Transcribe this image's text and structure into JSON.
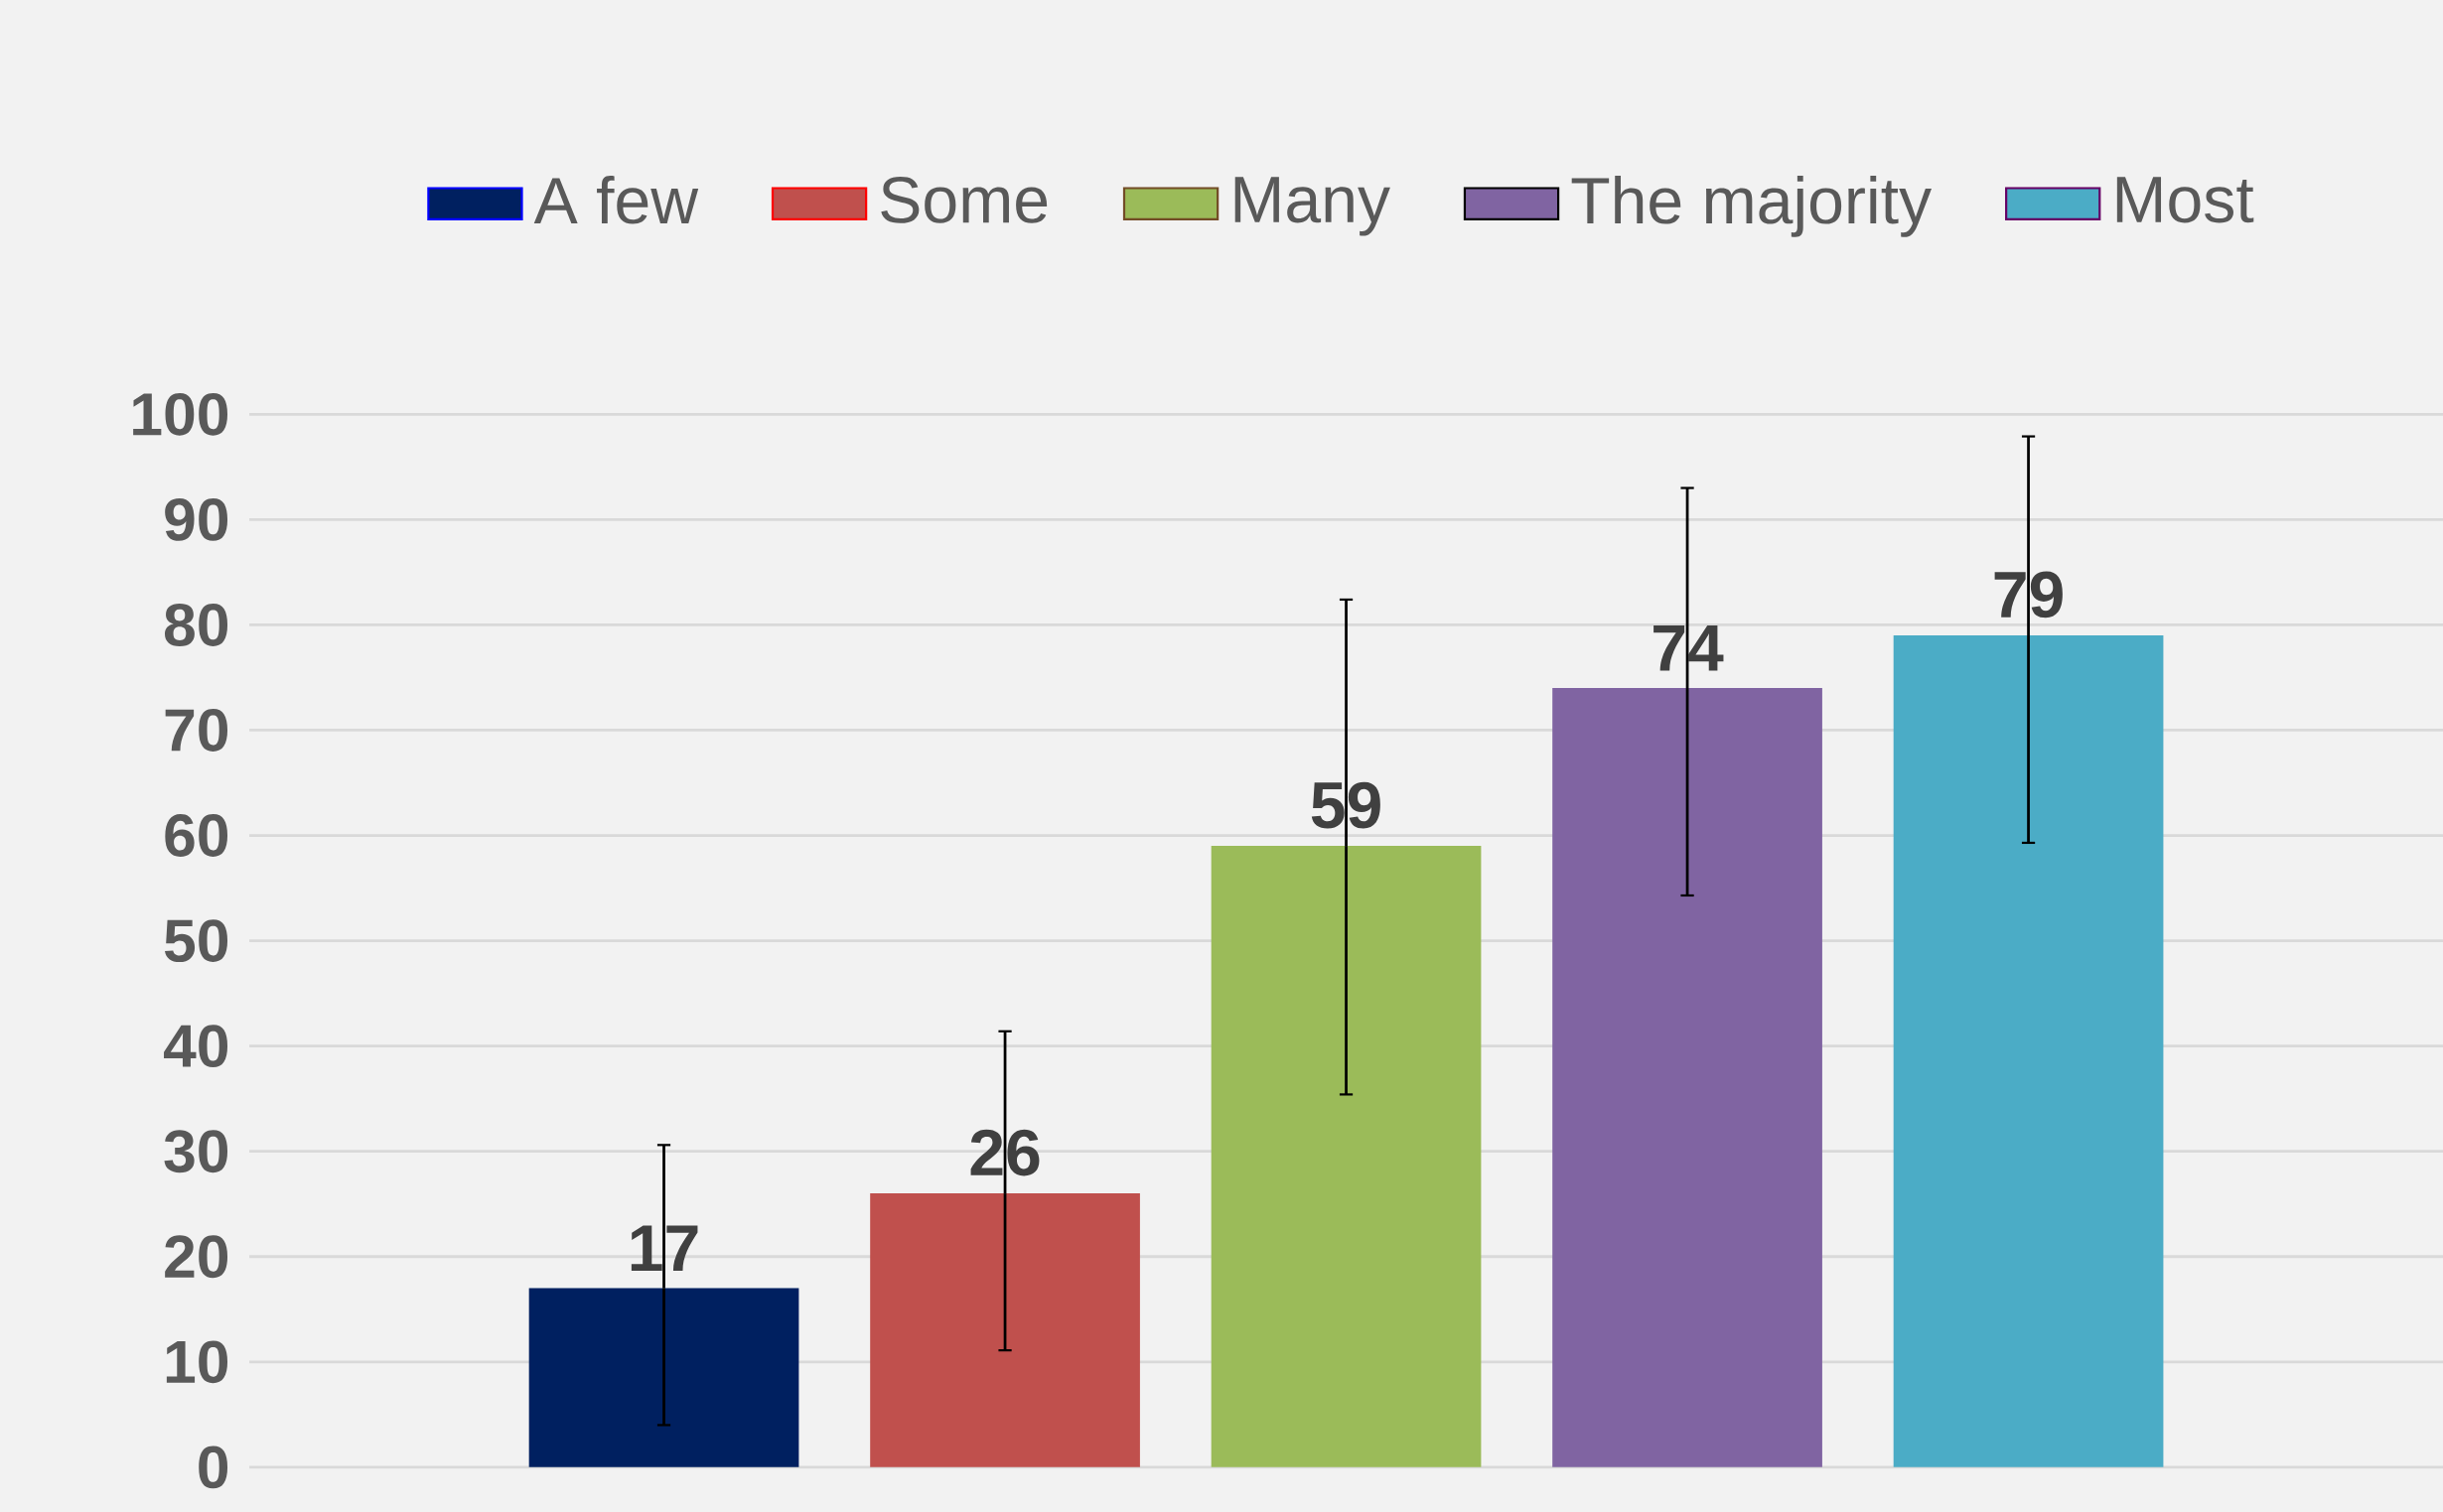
{
  "chart_data": {
    "type": "bar",
    "categories": [
      null
    ],
    "series": [
      {
        "name": "A few",
        "color": "#002060",
        "values": [
          17
        ],
        "errors": [
          [
            4,
            30.6
          ]
        ]
      },
      {
        "name": "Some",
        "color": "#c0504d",
        "values": [
          26
        ],
        "errors": [
          [
            11.1,
            41.4
          ]
        ]
      },
      {
        "name": "Many",
        "color": "#9bbb59",
        "values": [
          59
        ],
        "errors": [
          [
            35.4,
            82.4
          ]
        ]
      },
      {
        "name": "The majority",
        "color": "#8064a2",
        "values": [
          74
        ],
        "errors": [
          [
            54.3,
            93
          ]
        ]
      },
      {
        "name": "Most",
        "color": "#4bacc6",
        "values": [
          79
        ],
        "errors": [
          [
            59.3,
            97.9
          ]
        ]
      }
    ],
    "ylim": [
      0,
      100
    ],
    "yticks": [
      0,
      10,
      20,
      30,
      40,
      50,
      60,
      70,
      80,
      90,
      100
    ],
    "grid": "y",
    "legend": "top",
    "data_labels": true
  }
}
